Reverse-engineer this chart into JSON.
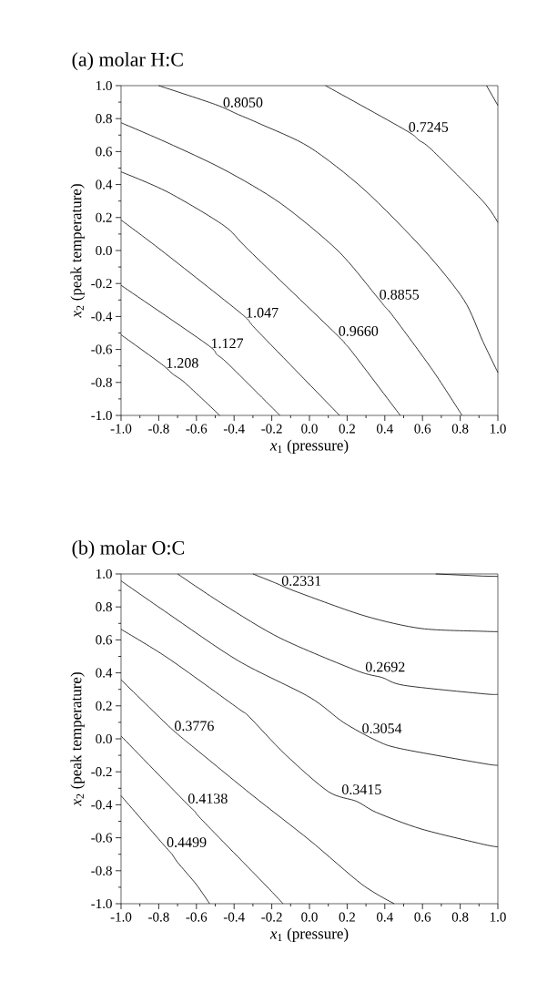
{
  "chart_data": [
    {
      "type": "line",
      "title": "(a) molar H:C",
      "xlabel": "*x*$_{1}$ (pressure)",
      "ylabel": "*x*$_{2}$ (peak temperature)",
      "xlim": [
        -1.0,
        1.0
      ],
      "ylim": [
        -1.0,
        1.0
      ],
      "xticks": [
        {
          "value": -1.0,
          "label": "-1.0"
        },
        {
          "value": -0.9,
          "label": null
        },
        {
          "value": -0.8,
          "label": "-0.8"
        },
        {
          "value": -0.7,
          "label": null
        },
        {
          "value": -0.6,
          "label": "-0.6"
        },
        {
          "value": -0.5,
          "label": null
        },
        {
          "value": -0.4,
          "label": "-0.4"
        },
        {
          "value": -0.3,
          "label": null
        },
        {
          "value": -0.2,
          "label": "-0.2"
        },
        {
          "value": -0.1,
          "label": null
        },
        {
          "value": 0.0,
          "label": "0.0"
        },
        {
          "value": 0.1,
          "label": null
        },
        {
          "value": 0.2,
          "label": "0.2"
        },
        {
          "value": 0.3,
          "label": null
        },
        {
          "value": 0.4,
          "label": "0.4"
        },
        {
          "value": 0.5,
          "label": null
        },
        {
          "value": 0.6,
          "label": "0.6"
        },
        {
          "value": 0.7,
          "label": null
        },
        {
          "value": 0.8,
          "label": "0.8"
        },
        {
          "value": 0.9,
          "label": null
        },
        {
          "value": 1.0,
          "label": "1.0"
        }
      ],
      "yticks": [
        {
          "value": -1.0,
          "label": "-1.0"
        },
        {
          "value": -0.9,
          "label": null
        },
        {
          "value": -0.8,
          "label": "-0.8"
        },
        {
          "value": -0.7,
          "label": null
        },
        {
          "value": -0.6,
          "label": "-0.6"
        },
        {
          "value": -0.5,
          "label": null
        },
        {
          "value": -0.4,
          "label": "-0.4"
        },
        {
          "value": -0.3,
          "label": null
        },
        {
          "value": -0.2,
          "label": "-0.2"
        },
        {
          "value": -0.1,
          "label": null
        },
        {
          "value": 0.0,
          "label": "0.0"
        },
        {
          "value": 0.1,
          "label": null
        },
        {
          "value": 0.2,
          "label": "0.2"
        },
        {
          "value": 0.3,
          "label": null
        },
        {
          "value": 0.4,
          "label": "0.4"
        },
        {
          "value": 0.5,
          "label": null
        },
        {
          "value": 0.6,
          "label": "0.6"
        },
        {
          "value": 0.7,
          "label": null
        },
        {
          "value": 0.8,
          "label": "0.8"
        },
        {
          "value": 0.9,
          "label": null
        },
        {
          "value": 1.0,
          "label": "1.0"
        }
      ],
      "series": [
        {
          "name": "0.7245",
          "color": "#000000",
          "x": [
            0.085,
            0.51,
            0.58,
            0.65,
            0.92,
            1.0
          ],
          "values": [
            1.0,
            0.73,
            0.67,
            0.61,
            0.3,
            0.17
          ]
        },
        {
          "name": "0.8050",
          "color": "#000000",
          "x": [
            -0.8,
            -0.5,
            -0.38,
            -0.26,
            0.0,
            0.29,
            0.61,
            0.82,
            0.92,
            1.0
          ],
          "values": [
            1.0,
            0.886,
            0.826,
            0.767,
            0.627,
            0.37,
            0.0,
            -0.3,
            -0.55,
            -0.74
          ]
        },
        {
          "name": "0.8855",
          "color": "#000000",
          "x": [
            -1.0,
            -0.753,
            -0.454,
            -0.154,
            0.15,
            0.355,
            0.4,
            0.445,
            0.654,
            0.81
          ],
          "values": [
            0.775,
            0.653,
            0.491,
            0.287,
            0.0,
            -0.276,
            -0.34,
            -0.4,
            -0.726,
            -1.0
          ]
        },
        {
          "name": "0.9660",
          "color": "#000000",
          "x": [
            -1.0,
            -0.753,
            -0.454,
            -0.32,
            0.138,
            0.187,
            0.232,
            0.482
          ],
          "values": [
            0.477,
            0.355,
            0.151,
            0.0,
            -0.503,
            -0.563,
            -0.623,
            -1.0
          ]
        },
        {
          "name": "1.047",
          "color": "#000000",
          "x": [
            -1.0,
            -0.785,
            -0.371,
            -0.311,
            -0.266,
            0.16
          ],
          "values": [
            0.185,
            0.0,
            -0.374,
            -0.443,
            -0.499,
            -1.0
          ]
        },
        {
          "name": "1.127",
          "color": "#000000",
          "x": [
            -1.0,
            -0.551,
            -0.491,
            -0.431,
            -0.157
          ],
          "values": [
            -0.211,
            -0.563,
            -0.631,
            -0.688,
            -1.0
          ]
        },
        {
          "name": "1.208",
          "color": "#000000",
          "x": [
            -1.0,
            -0.786,
            -0.723,
            -0.66,
            -0.476
          ],
          "values": [
            -0.511,
            -0.688,
            -0.751,
            -0.803,
            -1.0
          ]
        },
        {
          "color": "#000000",
          "x": [
            0.94,
            0.97,
            1.0
          ],
          "values": [
            1.0,
            0.94,
            0.88
          ]
        }
      ]
    },
    {
      "type": "line",
      "title": "(b) molar O:C",
      "xlabel": "*x*$_{1}$ (pressure)",
      "ylabel": "*x*$_{2}$ (peak temperature)",
      "xlim": [
        -1.0,
        1.0
      ],
      "ylim": [
        -1.0,
        1.0
      ],
      "xticks": [
        {
          "value": -1.0,
          "label": "-1.0"
        },
        {
          "value": -0.9,
          "label": null
        },
        {
          "value": -0.8,
          "label": "-0.8"
        },
        {
          "value": -0.7,
          "label": null
        },
        {
          "value": -0.6,
          "label": "-0.6"
        },
        {
          "value": -0.5,
          "label": null
        },
        {
          "value": -0.4,
          "label": "-0.4"
        },
        {
          "value": -0.3,
          "label": null
        },
        {
          "value": -0.2,
          "label": "-0.2"
        },
        {
          "value": -0.1,
          "label": null
        },
        {
          "value": 0.0,
          "label": "0.0"
        },
        {
          "value": 0.1,
          "label": null
        },
        {
          "value": 0.2,
          "label": "0.2"
        },
        {
          "value": 0.3,
          "label": null
        },
        {
          "value": 0.4,
          "label": "0.4"
        },
        {
          "value": 0.5,
          "label": null
        },
        {
          "value": 0.6,
          "label": "0.6"
        },
        {
          "value": 0.7,
          "label": null
        },
        {
          "value": 0.8,
          "label": "0.8"
        },
        {
          "value": 0.9,
          "label": null
        },
        {
          "value": 1.0,
          "label": "1.0"
        }
      ],
      "yticks": [
        {
          "value": -1.0,
          "label": "-1.0"
        },
        {
          "value": -0.9,
          "label": null
        },
        {
          "value": -0.8,
          "label": "-0.8"
        },
        {
          "value": -0.7,
          "label": null
        },
        {
          "value": -0.6,
          "label": "-0.6"
        },
        {
          "value": -0.5,
          "label": null
        },
        {
          "value": -0.4,
          "label": "-0.4"
        },
        {
          "value": -0.3,
          "label": null
        },
        {
          "value": -0.2,
          "label": "-0.2"
        },
        {
          "value": -0.1,
          "label": null
        },
        {
          "value": 0.0,
          "label": "0.0"
        },
        {
          "value": 0.1,
          "label": null
        },
        {
          "value": 0.2,
          "label": "0.2"
        },
        {
          "value": 0.3,
          "label": null
        },
        {
          "value": 0.4,
          "label": "0.4"
        },
        {
          "value": 0.5,
          "label": null
        },
        {
          "value": 0.6,
          "label": "0.6"
        },
        {
          "value": 0.7,
          "label": null
        },
        {
          "value": 0.8,
          "label": "0.8"
        },
        {
          "value": 0.9,
          "label": null
        },
        {
          "value": 1.0,
          "label": "1.0"
        }
      ],
      "series": [
        {
          "name": "0.2331",
          "color": "#000000",
          "x": [
            -0.3,
            -0.18,
            -0.064,
            0.295,
            0.594,
            0.924,
            1.0
          ],
          "values": [
            1.0,
            0.945,
            0.89,
            0.745,
            0.669,
            0.652,
            0.65
          ]
        },
        {
          "name": "0.2692",
          "color": "#000000",
          "x": [
            -0.7,
            -0.454,
            -0.154,
            0.25,
            0.385,
            0.504,
            0.924,
            1.0
          ],
          "values": [
            1.0,
            0.813,
            0.61,
            0.414,
            0.372,
            0.324,
            0.273,
            0.27
          ]
        },
        {
          "name": "0.3054",
          "color": "#000000",
          "x": [
            -1.0,
            -0.753,
            -0.379,
            0.0,
            0.18,
            0.355,
            0.482,
            0.924,
            1.0
          ],
          "values": [
            0.958,
            0.762,
            0.474,
            0.253,
            0.1,
            -0.01,
            -0.059,
            -0.15,
            -0.16
          ]
        },
        {
          "name": "0.3415",
          "color": "#000000",
          "x": [
            -1.0,
            -0.753,
            -0.379,
            -0.32,
            -0.13,
            0.1,
            0.25,
            0.355,
            0.594,
            0.924,
            1.0
          ],
          "values": [
            0.664,
            0.491,
            0.185,
            0.134,
            -0.093,
            -0.32,
            -0.379,
            -0.446,
            -0.547,
            -0.64,
            -0.655
          ]
        },
        {
          "name": "0.3776",
          "color": "#000000",
          "x": [
            -1.0,
            -0.753,
            -0.67,
            -0.61,
            -0.3,
            0.0,
            0.28,
            0.45
          ],
          "values": [
            0.358,
            0.083,
            0.0,
            -0.056,
            -0.345,
            -0.614,
            -0.884,
            -1.0
          ]
        },
        {
          "name": "0.4138",
          "color": "#000000",
          "x": [
            -1.0,
            -0.663,
            -0.61,
            -0.566,
            -0.236,
            -0.14
          ],
          "values": [
            0.017,
            -0.379,
            -0.438,
            -0.497,
            -0.884,
            -1.0
          ]
        },
        {
          "name": "0.4499",
          "color": "#000000",
          "x": [
            -1.0,
            -0.783,
            -0.73,
            -0.7,
            -0.6,
            -0.53
          ],
          "values": [
            -0.345,
            -0.631,
            -0.699,
            -0.749,
            -0.884,
            -1.0
          ]
        },
        {
          "color": "#000000",
          "x": [
            0.67,
            0.92,
            1.0
          ],
          "values": [
            1.0,
            0.987,
            0.985
          ]
        }
      ]
    }
  ]
}
